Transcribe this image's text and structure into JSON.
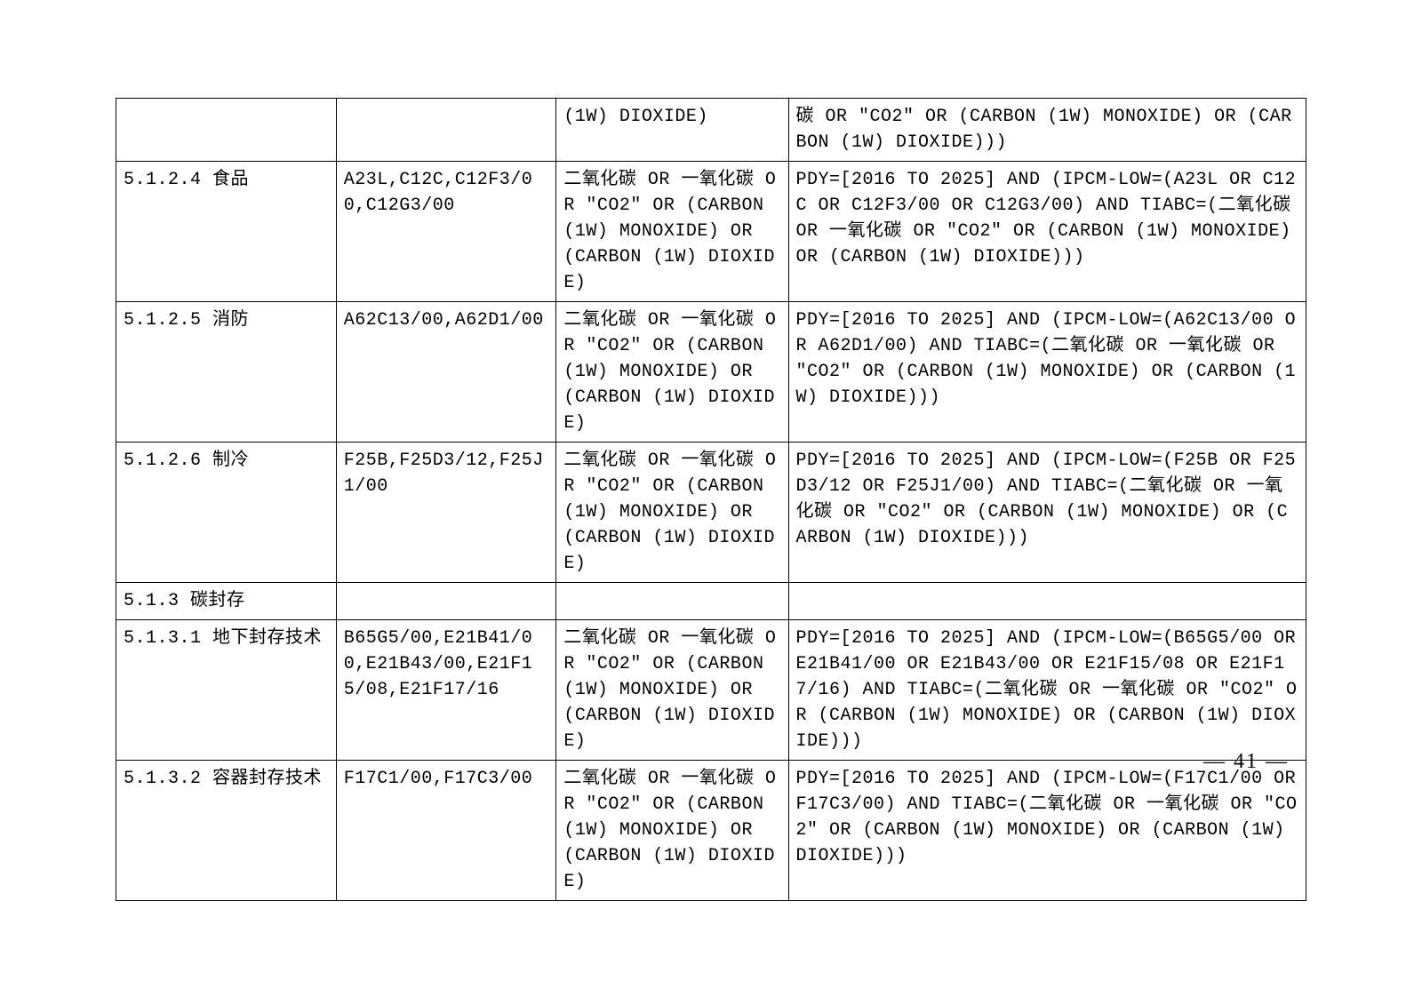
{
  "pageNumber": "— 41 —",
  "rows": [
    {
      "c1": "",
      "c2": "",
      "c3": "(1W) DIOXIDE)",
      "c4": "碳 OR \"CO2\" OR (CARBON (1W) MONOXIDE) OR (CARBON (1W) DIOXIDE)))"
    },
    {
      "c1": "5.1.2.4 食品",
      "c2": "A23L,C12C,C12F3/00,C12G3/00",
      "c3": "二氧化碳 OR 一氧化碳 OR \"CO2\" OR (CARBON (1W) MONOXIDE) OR (CARBON (1W) DIOXIDE)",
      "c4": "PDY=[2016 TO 2025] AND (IPCM-LOW=(A23L OR C12C OR C12F3/00 OR C12G3/00) AND  TIABC=(二氧化碳 OR 一氧化碳 OR \"CO2\" OR (CARBON (1W) MONOXIDE) OR (CARBON (1W) DIOXIDE)))"
    },
    {
      "c1": "5.1.2.5 消防",
      "c2": "A62C13/00,A62D1/00",
      "c3": "二氧化碳 OR 一氧化碳 OR \"CO2\" OR (CARBON (1W) MONOXIDE) OR (CARBON (1W) DIOXIDE)",
      "c4": "PDY=[2016 TO 2025] AND (IPCM-LOW=(A62C13/00 OR A62D1/00) AND  TIABC=(二氧化碳 OR 一氧化碳 OR \"CO2\" OR (CARBON (1W) MONOXIDE) OR (CARBON (1W) DIOXIDE)))"
    },
    {
      "c1": "5.1.2.6 制冷",
      "c2": "F25B,F25D3/12,F25J1/00",
      "c3": "二氧化碳 OR 一氧化碳 OR \"CO2\" OR (CARBON (1W) MONOXIDE) OR (CARBON (1W) DIOXIDE)",
      "c4": "PDY=[2016 TO 2025] AND (IPCM-LOW=(F25B OR F25D3/12 OR F25J1/00) AND  TIABC=(二氧化碳 OR 一氧化碳 OR \"CO2\" OR (CARBON (1W) MONOXIDE) OR (CARBON (1W) DIOXIDE)))"
    },
    {
      "c1": "5.1.3 碳封存",
      "c2": "",
      "c3": "",
      "c4": ""
    },
    {
      "c1": "5.1.3.1 地下封存技术",
      "c2": "B65G5/00,E21B41/00,E21B43/00,E21F15/08,E21F17/16",
      "c3": "二氧化碳 OR 一氧化碳 OR \"CO2\" OR (CARBON (1W) MONOXIDE) OR (CARBON (1W) DIOXIDE)",
      "c4": "PDY=[2016 TO 2025] AND (IPCM-LOW=(B65G5/00 OR E21B41/00 OR E21B43/00 OR E21F15/08 OR E21F17/16) AND  TIABC=(二氧化碳 OR 一氧化碳 OR \"CO2\" OR (CARBON (1W) MONOXIDE) OR (CARBON (1W) DIOXIDE)))"
    },
    {
      "c1": "5.1.3.2 容器封存技术",
      "c2": "F17C1/00,F17C3/00",
      "c3": "二氧化碳 OR 一氧化碳 OR \"CO2\" OR (CARBON (1W) MONOXIDE) OR (CARBON (1W) DIOXIDE)",
      "c4": "PDY=[2016 TO 2025] AND (IPCM-LOW=(F17C1/00 OR F17C3/00) AND  TIABC=(二氧化碳 OR 一氧化碳 OR \"CO2\" OR (CARBON (1W) MONOXIDE) OR (CARBON (1W) DIOXIDE)))"
    }
  ]
}
